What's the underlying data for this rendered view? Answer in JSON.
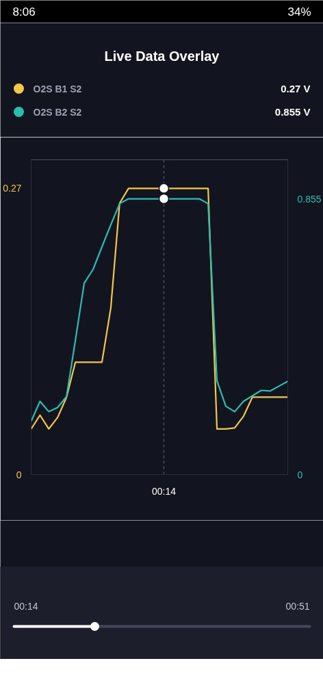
{
  "chart_data": {
    "type": "line",
    "title": "Live Data Overlay",
    "categories": [
      null,
      null,
      null,
      null,
      null,
      null,
      null,
      null,
      null,
      null,
      null,
      null,
      null,
      null,
      null,
      "00:14",
      null,
      null,
      null,
      null,
      null,
      null,
      null,
      null,
      null,
      null,
      null,
      null,
      null,
      null
    ],
    "series": [
      {
        "name": "O2S B1 S2",
        "color": "#f5c842",
        "values": [
          0.043,
          0.056,
          0.043,
          0.054,
          0.073,
          0.106,
          0.106,
          0.106,
          0.106,
          0.157,
          0.256,
          0.27,
          0.27,
          0.27,
          0.27,
          0.27,
          0.27,
          0.27,
          0.27,
          0.27,
          0.27,
          0.043,
          0.043,
          0.044,
          0.055,
          0.073,
          0.073,
          0.073,
          0.073,
          0.073
        ]
      },
      {
        "name": "O2S B2 S2",
        "color": "#26c0b2",
        "axis": "y2",
        "values": [
          0.165,
          0.227,
          0.195,
          0.208,
          0.242,
          0.416,
          0.594,
          0.636,
          0.706,
          0.774,
          0.84,
          0.855,
          0.855,
          0.855,
          0.855,
          0.855,
          0.855,
          0.855,
          0.855,
          0.855,
          0.84,
          0.291,
          0.212,
          0.195,
          0.227,
          0.244,
          0.261,
          0.259,
          0.274,
          0.289
        ]
      },
      {
        "type": "scatter",
        "color": "#ffffff",
        "marker": "circle",
        "x": [
          "00:14"
        ],
        "values": [
          0.27
        ]
      },
      {
        "type": "scatter",
        "color": "#ffffff",
        "marker": "circle",
        "axis": "y2",
        "x": [
          "00:14"
        ],
        "values": [
          0.855
        ]
      }
    ],
    "ylim": [
      0,
      0.297
    ],
    "yticks": [
      0,
      0.27
    ],
    "y2lim": [
      0,
      0.976
    ],
    "y2ticks": [
      0,
      0.855
    ],
    "ref_lines": [
      {
        "axis": "x",
        "value": "00:14",
        "color": "#4a4e5e",
        "line_style": "dashed"
      }
    ],
    "legend": "top",
    "annotations": [
      "0.27 V",
      "0.855 V",
      "00:14",
      "00:51",
      "8:06",
      "34%"
    ]
  }
}
